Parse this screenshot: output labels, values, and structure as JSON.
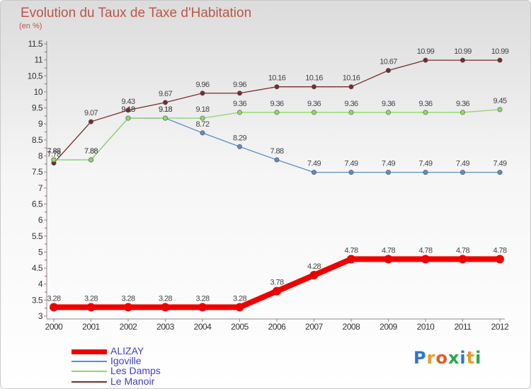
{
  "header": {
    "title": "Evolution du Taux de Taxe d'Habitation",
    "subtitle": "(en %)"
  },
  "logo": {
    "letters": [
      "P",
      "r",
      "o",
      "x",
      "i",
      "t",
      "i"
    ],
    "colors": [
      "#2f77c6",
      "#e89a2a",
      "#e35a2a",
      "#2aa84a",
      "#2f77c6",
      "#e89a2a",
      "#2aa84a"
    ]
  },
  "chart_data": {
    "type": "line",
    "x": [
      "2000",
      "2001",
      "2002",
      "2003",
      "2004",
      "2005",
      "2006",
      "2007",
      "2008",
      "2009",
      "2010",
      "2011",
      "2012"
    ],
    "ylim": [
      3,
      11.5
    ],
    "yticks": [
      "3",
      "3.5",
      "4",
      "4.5",
      "5",
      "5.5",
      "6",
      "6.5",
      "7",
      "7.5",
      "8",
      "8.5",
      "9",
      "9.5",
      "10",
      "10.5",
      "11",
      "11.5"
    ],
    "grid": false,
    "legend_position": "bottom-left",
    "series": [
      {
        "name": "Le Manoir",
        "color": "#7a2a2a",
        "values": [
          7.78,
          9.07,
          9.43,
          9.67,
          9.96,
          9.96,
          10.16,
          10.16,
          10.16,
          10.67,
          10.99,
          10.99,
          10.99
        ],
        "labels": [
          "7.78",
          "9.07",
          "9.43",
          "9.67",
          "9.96",
          "9.96",
          "10.16",
          "10.16",
          "10.16",
          "10.67",
          "10.99",
          "10.99",
          "10.99"
        ]
      },
      {
        "name": "Igoville",
        "color": "#5b8ec7",
        "values": [
          7.88,
          7.88,
          9.18,
          9.18,
          8.72,
          8.29,
          7.88,
          7.49,
          7.49,
          7.49,
          7.49,
          7.49,
          7.49
        ],
        "labels": [
          "7.88",
          "7.88",
          "9.18",
          "9.18",
          "8.72",
          "8.29",
          "7.88",
          "7.49",
          "7.49",
          "7.49",
          "7.49",
          "7.49",
          "7.49"
        ]
      },
      {
        "name": "Les Damps",
        "color": "#8ed86a",
        "values": [
          7.88,
          7.88,
          9.18,
          9.18,
          9.18,
          9.36,
          9.36,
          9.36,
          9.36,
          9.36,
          9.36,
          9.36,
          9.45
        ],
        "labels": [
          "7.88",
          "7.88",
          "9.18",
          "9.18",
          "9.18",
          "9.36",
          "9.36",
          "9.36",
          "9.36",
          "9.36",
          "9.36",
          "9.36",
          "9.45"
        ]
      },
      {
        "name": "ALIZAY",
        "color": "#ee0000",
        "values": [
          3.28,
          3.28,
          3.28,
          3.28,
          3.28,
          3.28,
          3.78,
          4.28,
          4.78,
          4.78,
          4.78,
          4.78,
          4.78
        ],
        "labels": [
          "3.28",
          "3.28",
          "3.28",
          "3.28",
          "3.28",
          "3.28",
          "3.78",
          "4.28",
          "4.78",
          "4.78",
          "4.78",
          "4.78",
          "4.78"
        ]
      }
    ],
    "legend": [
      "ALIZAY",
      "Igoville",
      "Les Damps",
      "Le Manoir"
    ]
  }
}
